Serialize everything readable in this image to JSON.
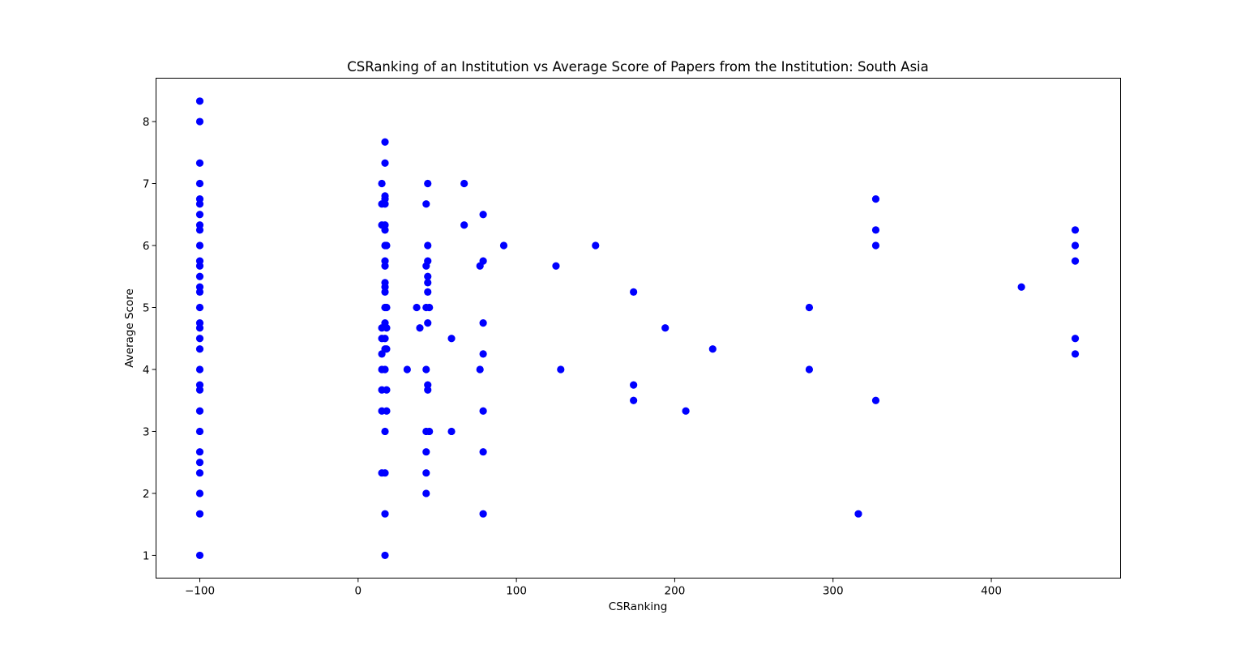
{
  "chart_data": {
    "type": "scatter",
    "title": "CSRanking of an Institution vs Average Score of Papers from the Institution: South Asia",
    "xlabel": "CSRanking",
    "ylabel": "Average Score",
    "xlim": [
      -127.65,
      481.65
    ],
    "ylim": [
      0.633,
      8.7
    ],
    "xticks": [
      -100,
      0,
      100,
      200,
      300,
      400
    ],
    "xtick_labels": [
      "−100",
      "0",
      "100",
      "200",
      "300",
      "400"
    ],
    "yticks": [
      1,
      2,
      3,
      4,
      5,
      6,
      7,
      8
    ],
    "ytick_labels": [
      "1",
      "2",
      "3",
      "4",
      "5",
      "6",
      "7",
      "8"
    ],
    "grid": false,
    "color": "#0000ff",
    "series": [
      {
        "points": [
          [
            -100,
            8.33
          ],
          [
            -100,
            8.0
          ],
          [
            -100,
            7.33
          ],
          [
            -100,
            7.0
          ],
          [
            -100,
            6.75
          ],
          [
            -100,
            6.67
          ],
          [
            -100,
            6.5
          ],
          [
            -100,
            6.33
          ],
          [
            -100,
            6.25
          ],
          [
            -100,
            6.0
          ],
          [
            -100,
            5.75
          ],
          [
            -100,
            5.67
          ],
          [
            -100,
            5.5
          ],
          [
            -100,
            5.33
          ],
          [
            -100,
            5.25
          ],
          [
            -100,
            5.0
          ],
          [
            -100,
            4.75
          ],
          [
            -100,
            4.67
          ],
          [
            -100,
            4.5
          ],
          [
            -100,
            4.33
          ],
          [
            -100,
            4.0
          ],
          [
            -100,
            3.75
          ],
          [
            -100,
            3.67
          ],
          [
            -100,
            3.33
          ],
          [
            -100,
            3.0
          ],
          [
            -100,
            2.67
          ],
          [
            -100,
            2.5
          ],
          [
            -100,
            2.33
          ],
          [
            -100,
            2.0
          ],
          [
            -100,
            1.67
          ],
          [
            -100,
            1.0
          ],
          [
            17,
            7.67
          ],
          [
            17,
            7.33
          ],
          [
            15,
            7.0
          ],
          [
            17,
            6.8
          ],
          [
            17,
            6.75
          ],
          [
            15,
            6.67
          ],
          [
            17,
            6.67
          ],
          [
            15,
            6.33
          ],
          [
            17,
            6.33
          ],
          [
            17,
            6.25
          ],
          [
            17,
            6.0
          ],
          [
            18,
            6.0
          ],
          [
            17,
            5.75
          ],
          [
            17,
            5.67
          ],
          [
            17,
            5.4
          ],
          [
            17,
            5.33
          ],
          [
            17,
            5.25
          ],
          [
            17,
            5.0
          ],
          [
            18,
            5.0
          ],
          [
            15,
            4.67
          ],
          [
            17,
            4.75
          ],
          [
            18,
            4.67
          ],
          [
            15,
            4.5
          ],
          [
            17,
            4.5
          ],
          [
            15,
            4.25
          ],
          [
            17,
            4.33
          ],
          [
            18,
            4.33
          ],
          [
            15,
            4.0
          ],
          [
            17,
            4.0
          ],
          [
            15,
            3.67
          ],
          [
            18,
            3.67
          ],
          [
            15,
            3.33
          ],
          [
            18,
            3.33
          ],
          [
            17,
            3.0
          ],
          [
            15,
            2.33
          ],
          [
            17,
            2.33
          ],
          [
            17,
            1.67
          ],
          [
            17,
            1.0
          ],
          [
            31,
            4.0
          ],
          [
            37,
            5.0
          ],
          [
            39,
            4.67
          ],
          [
            44,
            7.0
          ],
          [
            43,
            6.67
          ],
          [
            44,
            6.0
          ],
          [
            44,
            5.75
          ],
          [
            43,
            5.67
          ],
          [
            44,
            5.5
          ],
          [
            44,
            5.4
          ],
          [
            44,
            5.25
          ],
          [
            43,
            5.0
          ],
          [
            45,
            5.0
          ],
          [
            44,
            4.75
          ],
          [
            43,
            4.0
          ],
          [
            44,
            3.75
          ],
          [
            44,
            3.67
          ],
          [
            43,
            3.0
          ],
          [
            45,
            3.0
          ],
          [
            43,
            2.67
          ],
          [
            43,
            2.33
          ],
          [
            43,
            2.0
          ],
          [
            59,
            4.5
          ],
          [
            59,
            3.0
          ],
          [
            67,
            7.0
          ],
          [
            67,
            6.33
          ],
          [
            77,
            5.67
          ],
          [
            77,
            4.0
          ],
          [
            79,
            6.5
          ],
          [
            79,
            5.75
          ],
          [
            79,
            4.75
          ],
          [
            79,
            4.25
          ],
          [
            79,
            3.33
          ],
          [
            79,
            2.67
          ],
          [
            79,
            1.67
          ],
          [
            92,
            6.0
          ],
          [
            125,
            5.67
          ],
          [
            128,
            4.0
          ],
          [
            150,
            6.0
          ],
          [
            174,
            5.25
          ],
          [
            174,
            3.75
          ],
          [
            174,
            3.5
          ],
          [
            194,
            4.67
          ],
          [
            207,
            3.33
          ],
          [
            224,
            4.33
          ],
          [
            285,
            5.0
          ],
          [
            285,
            4.0
          ],
          [
            316,
            1.67
          ],
          [
            327,
            6.75
          ],
          [
            327,
            6.25
          ],
          [
            327,
            6.0
          ],
          [
            327,
            3.5
          ],
          [
            419,
            5.33
          ],
          [
            453,
            6.25
          ],
          [
            453,
            6.0
          ],
          [
            453,
            5.75
          ],
          [
            453,
            4.5
          ],
          [
            453,
            4.25
          ]
        ]
      }
    ]
  }
}
